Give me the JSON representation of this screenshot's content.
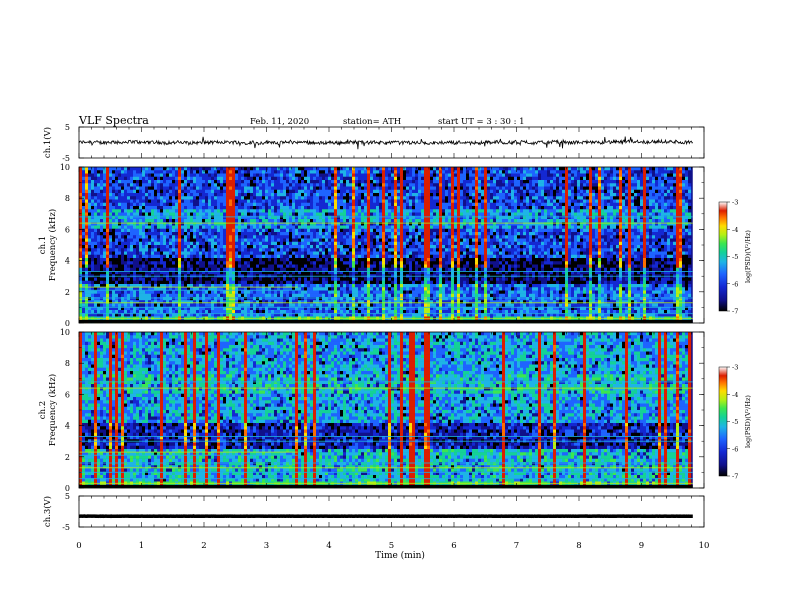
{
  "header": {
    "title": "VLF  Spectra",
    "date": "Feb. 11, 2020",
    "station": "station= ATH",
    "start": "start  UT  =    3  : 30 : 1"
  },
  "colors": {
    "spectrogram_scale": [
      "#000000",
      "#10108a",
      "#1428d2",
      "#1e64ff",
      "#1eb4e6",
      "#14d296",
      "#3ce650",
      "#b4f014",
      "#ffdc00",
      "#ff6e00",
      "#dc1e00",
      "#ffffff"
    ],
    "trace": "#000000"
  },
  "chart_data": [
    {
      "name": "ch1-waveform",
      "type": "line",
      "ylabel": "ch.1(V)",
      "ylim": [
        -5,
        5
      ],
      "yticks": [
        "5",
        "-5"
      ],
      "xlim": [
        0,
        10
      ],
      "duration_min": 9.82,
      "baseline": 0,
      "noise_amplitude": 1.0
    },
    {
      "name": "ch1-spectrogram",
      "type": "heatmap",
      "ylabel": "ch.1\nFrequency  (kHz)",
      "ylim": [
        0,
        10
      ],
      "yticks": [
        "0",
        "2",
        "4",
        "6",
        "8",
        "10"
      ],
      "xlim": [
        0,
        10
      ],
      "colorbar": {
        "label": "log(PSD)(V²/Hz)",
        "ticks": [
          "-3",
          "-4",
          "-5",
          "-6",
          "-7"
        ],
        "range": [
          -7,
          -3
        ]
      }
    },
    {
      "name": "ch2-spectrogram",
      "type": "heatmap",
      "ylabel": "ch.2\nFrequency  (kHz)",
      "ylim": [
        0,
        10
      ],
      "yticks": [
        "0",
        "2",
        "4",
        "6",
        "8",
        "10"
      ],
      "xlim": [
        0,
        10
      ],
      "colorbar": {
        "label": "log(PSD)(V²/Hz)",
        "ticks": [
          "-3",
          "-4",
          "-5",
          "-6",
          "-7"
        ],
        "range": [
          -7,
          -3
        ]
      }
    },
    {
      "name": "ch3-waveform",
      "type": "line",
      "ylabel": "ch.3(V)",
      "ylim": [
        -5,
        5
      ],
      "yticks": [
        "5",
        "-5"
      ],
      "xlim": [
        0,
        10
      ],
      "duration_min": 9.82,
      "baseline": -1.5,
      "noise_amplitude": 0.05
    }
  ],
  "xaxis": {
    "label": "Time  (min)",
    "ticks": [
      "0",
      "1",
      "2",
      "3",
      "4",
      "5",
      "6",
      "7",
      "8",
      "9",
      "10"
    ]
  }
}
